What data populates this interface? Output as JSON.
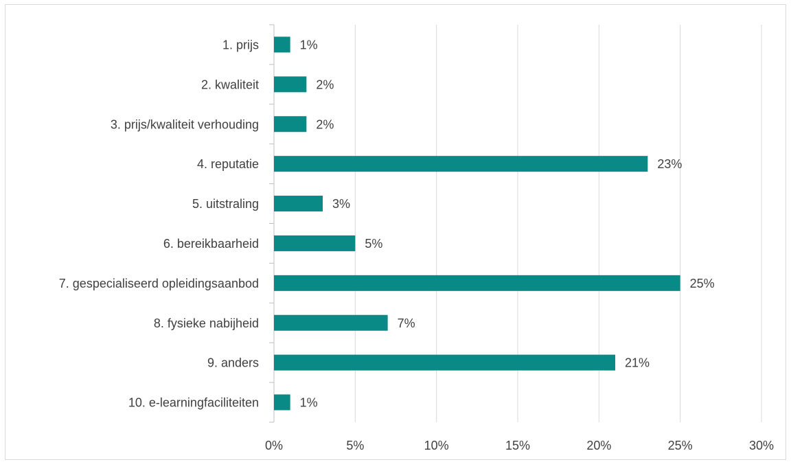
{
  "chart_data": {
    "type": "bar",
    "orientation": "horizontal",
    "title": "",
    "xlabel": "",
    "ylabel": "",
    "categories": [
      "1. prijs",
      "2. kwaliteit",
      "3. prijs/kwaliteit verhouding",
      "4. reputatie",
      "5. uitstraling",
      "6. bereikbaarheid",
      "7. gespecialiseerd opleidingsaanbod",
      "8. fysieke nabijheid",
      "9. anders",
      "10. e-learningfaciliteiten"
    ],
    "values": [
      1,
      2,
      2,
      23,
      3,
      5,
      25,
      7,
      21,
      1
    ],
    "data_labels": [
      "1%",
      "2%",
      "2%",
      "23%",
      "3%",
      "5%",
      "25%",
      "7%",
      "21%",
      "1%"
    ],
    "xlim": [
      0,
      30
    ],
    "x_ticks": [
      0,
      5,
      10,
      15,
      20,
      25,
      30
    ],
    "x_tick_labels": [
      "0%",
      "5%",
      "10%",
      "15%",
      "20%",
      "25%",
      "30%"
    ],
    "grid": "vertical",
    "legend": "none",
    "bar_color": "#0a8a86"
  }
}
